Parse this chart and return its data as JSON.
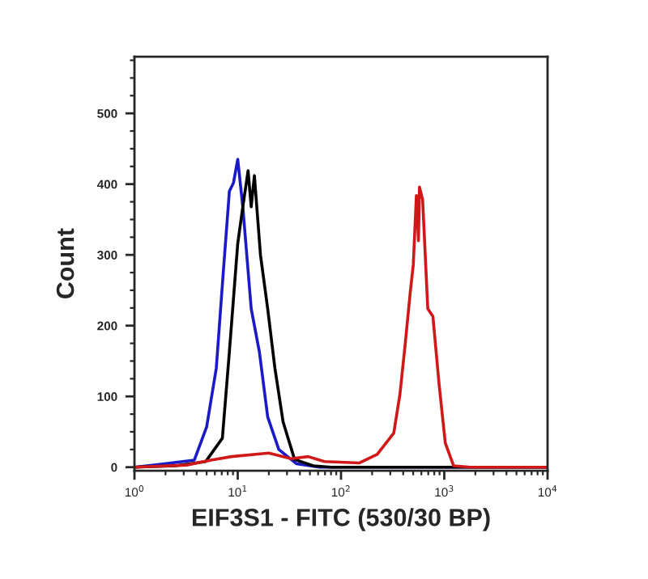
{
  "chart_data": {
    "type": "line",
    "xlabel": "EIF3S1 - FITC (530/30 BP)",
    "ylabel": "Count",
    "log": "x",
    "xlim": [
      1,
      10000
    ],
    "xticks": [
      {
        "value": 1,
        "label": "10$^{0}$"
      },
      {
        "value": 10,
        "label": "10$^{1}$"
      },
      {
        "value": 100,
        "label": "10$^{2}$"
      },
      {
        "value": 1000,
        "label": "10$^{3}$"
      },
      {
        "value": 10000,
        "label": "10$^{4}$"
      }
    ],
    "ylim": [
      -5,
      580
    ],
    "yticks": [
      0,
      100,
      200,
      300,
      400,
      500
    ],
    "grid": false,
    "legend": false,
    "line_style": "solid",
    "marker": "none",
    "series": [
      {
        "color": "#1a1ac8",
        "x": [
          1,
          1.55,
          3.8,
          5.0,
          6.2,
          7.2,
          8.3,
          9.1,
          10,
          11.2,
          13.5,
          16.2,
          19.5,
          25,
          37,
          62,
          10000
        ],
        "values": [
          0,
          3,
          10,
          57,
          140,
          270,
          390,
          402,
          435,
          368,
          224,
          163,
          71,
          25,
          5,
          0,
          0
        ]
      },
      {
        "color": "#000000",
        "x": [
          1,
          2.5,
          4.9,
          7.1,
          8.3,
          10,
          11.2,
          12.6,
          13.5,
          14.5,
          16.6,
          19.5,
          22.9,
          27.5,
          35.5,
          53.7,
          80,
          10000
        ],
        "values": [
          0,
          2,
          8,
          41,
          163,
          316,
          368,
          419,
          368,
          412,
          300,
          224,
          140,
          64,
          11,
          2,
          0,
          0
        ]
      },
      {
        "color": "#d01818",
        "x": [
          1,
          3.2,
          5.5,
          8.7,
          20,
          33,
          48,
          69,
          151,
          224,
          324,
          372,
          417,
          468,
          501,
          537,
          562,
          575,
          617,
          692,
          776,
          891,
          1023,
          1230,
          1778,
          10000
        ],
        "values": [
          0,
          3,
          10,
          15,
          20,
          12,
          15,
          8,
          6,
          18,
          48,
          103,
          172,
          247,
          286,
          384,
          320,
          396,
          378,
          224,
          213,
          117,
          34,
          2,
          0,
          0
        ]
      }
    ]
  }
}
